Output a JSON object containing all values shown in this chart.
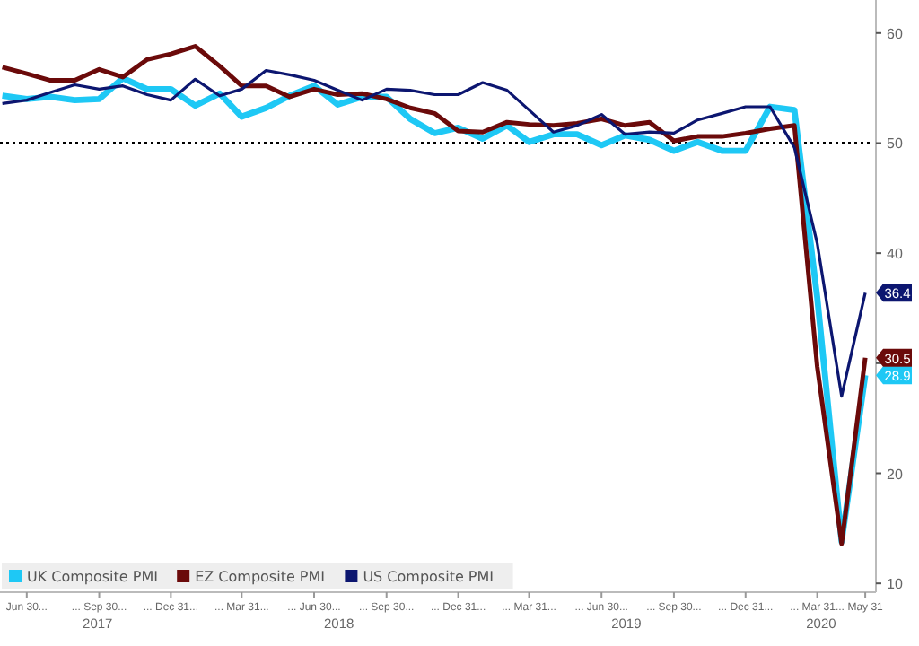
{
  "chart_data": {
    "type": "line",
    "x": [
      "2017-05",
      "2017-06",
      "2017-07",
      "2017-08",
      "2017-09",
      "2017-10",
      "2017-11",
      "2017-12",
      "2018-01",
      "2018-02",
      "2018-03",
      "2018-04",
      "2018-05",
      "2018-06",
      "2018-07",
      "2018-08",
      "2018-09",
      "2018-10",
      "2018-11",
      "2018-12",
      "2019-01",
      "2019-02",
      "2019-03",
      "2019-04",
      "2019-05",
      "2019-06",
      "2019-07",
      "2019-08",
      "2019-09",
      "2019-10",
      "2019-11",
      "2019-12",
      "2020-01",
      "2020-02",
      "2020-03",
      "2020-04",
      "2020-05"
    ],
    "series": [
      {
        "name": "UK Composite PMI",
        "color": "#1ec8f5",
        "values": [
          54.3,
          54.0,
          54.2,
          53.9,
          54.0,
          55.9,
          54.9,
          54.9,
          53.4,
          54.5,
          52.4,
          53.2,
          54.3,
          55.2,
          53.5,
          54.2,
          54.2,
          52.2,
          50.9,
          51.4,
          50.4,
          51.6,
          50.1,
          50.8,
          50.8,
          49.8,
          50.7,
          50.3,
          49.3,
          50.1,
          49.3,
          49.3,
          53.3,
          53.0,
          36.0,
          13.8,
          28.9
        ],
        "value_labels": [
          null,
          null,
          null,
          null,
          null,
          null,
          null,
          null,
          null,
          null,
          null,
          null,
          null,
          null,
          null,
          null,
          null,
          null,
          null,
          null,
          null,
          null,
          null,
          null,
          null,
          null,
          null,
          null,
          null,
          null,
          null,
          null,
          null,
          null,
          null,
          null,
          "28.9"
        ]
      },
      {
        "name": "EZ Composite PMI",
        "color": "#6b0a0a",
        "values": [
          56.9,
          56.3,
          55.7,
          55.7,
          56.7,
          56.0,
          57.6,
          58.1,
          58.8,
          57.0,
          55.2,
          55.2,
          54.2,
          54.9,
          54.4,
          54.5,
          54.0,
          53.2,
          52.7,
          51.1,
          51.0,
          51.9,
          51.7,
          51.6,
          51.8,
          52.2,
          51.6,
          51.9,
          50.2,
          50.6,
          50.6,
          50.9,
          51.3,
          51.6,
          29.7,
          13.6,
          30.5
        ],
        "value_labels": [
          null,
          null,
          null,
          null,
          null,
          null,
          null,
          null,
          null,
          null,
          null,
          null,
          null,
          null,
          null,
          null,
          null,
          null,
          null,
          null,
          null,
          null,
          null,
          null,
          null,
          null,
          null,
          null,
          null,
          null,
          null,
          null,
          null,
          null,
          null,
          null,
          "30.5"
        ]
      },
      {
        "name": "US Composite PMI",
        "color": "#0c1670",
        "values": [
          53.6,
          53.9,
          54.6,
          55.3,
          54.9,
          55.2,
          54.4,
          53.9,
          55.8,
          54.3,
          54.9,
          56.6,
          56.2,
          55.7,
          54.8,
          53.9,
          54.9,
          54.8,
          54.4,
          54.4,
          55.5,
          54.8,
          53.0,
          51.0,
          51.6,
          52.6,
          50.8,
          51.0,
          50.9,
          52.1,
          52.7,
          53.3,
          53.3,
          49.6,
          40.9,
          27.0,
          36.4
        ],
        "value_labels": [
          null,
          null,
          null,
          null,
          null,
          null,
          null,
          null,
          null,
          null,
          null,
          null,
          null,
          null,
          null,
          null,
          null,
          null,
          null,
          null,
          null,
          null,
          null,
          null,
          null,
          null,
          null,
          null,
          null,
          null,
          null,
          null,
          null,
          null,
          null,
          null,
          "36.4"
        ]
      }
    ],
    "xlim": [
      "2017-04-28",
      "2020-05-10"
    ],
    "xticks": [
      {
        "value": "2017-06",
        "label": "Jun 30..."
      },
      {
        "value": "2017-09",
        "label": "... Sep 30..."
      },
      {
        "value": "2017-12",
        "label": "... Dec 31..."
      },
      {
        "value": "2018-03",
        "label": "... Mar 31..."
      },
      {
        "value": "2018-06",
        "label": "... Jun 30..."
      },
      {
        "value": "2018-09",
        "label": "... Sep 30..."
      },
      {
        "value": "2018-12",
        "label": "... Dec 31..."
      },
      {
        "value": "2019-03",
        "label": "... Mar 31..."
      },
      {
        "value": "2019-06",
        "label": "... Jun 30..."
      },
      {
        "value": "2019-09",
        "label": "... Sep 30..."
      },
      {
        "value": "2019-12",
        "label": "... Dec 31..."
      },
      {
        "value": "2020-03",
        "label": "... Mar 31..."
      },
      {
        "value": "2020-05",
        "label": "May 31"
      }
    ],
    "ylim": [
      9.2,
      63
    ],
    "yticks": [
      10,
      20,
      {
        "value": 30,
        "label": null
      },
      40,
      50,
      60
    ],
    "ref_lines": [
      {
        "axis": "y",
        "value": 50,
        "color": "#000000",
        "line_style": "dotted"
      }
    ],
    "annotations": [
      "2017",
      "2018",
      "2019",
      "2020"
    ],
    "legend": "bottom left",
    "grid": false,
    "line_style": "solid",
    "marker": "none"
  }
}
